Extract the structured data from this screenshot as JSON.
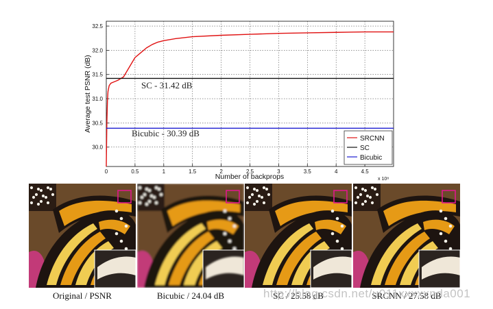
{
  "chart_data": {
    "type": "line",
    "ylabel": "Average test PSNR (dB)",
    "xlabel": "Number of backprops",
    "x_multiplier_label": "x 10⁸",
    "xlim": [
      0,
      5
    ],
    "ylim": [
      29.6,
      32.6
    ],
    "x_ticks": [
      0,
      0.5,
      1,
      1.5,
      2,
      2.5,
      3,
      3.5,
      4,
      4.5
    ],
    "x_tick_labels": [
      "0",
      "0.5",
      "1",
      "1.5",
      "2",
      "2.5",
      "3",
      "3.5",
      "4",
      "4.5"
    ],
    "y_ticks": [
      30.0,
      30.5,
      31.0,
      31.5,
      32.0,
      32.5
    ],
    "y_tick_labels": [
      "30.0",
      "30.5",
      "31.0",
      "31.5",
      "32.0",
      "32.5"
    ],
    "grid": true,
    "legend_position": "bottom-right",
    "series": [
      {
        "name": "SRCNN",
        "color": "#e01010",
        "x": [
          0,
          0.01,
          0.02,
          0.03,
          0.05,
          0.08,
          0.12,
          0.2,
          0.3,
          0.4,
          0.5,
          0.6,
          0.7,
          0.8,
          0.9,
          1.0,
          1.2,
          1.5,
          2.0,
          2.5,
          3.0,
          3.5,
          4.0,
          4.5,
          5.0
        ],
        "y": [
          29.6,
          30.5,
          30.95,
          31.15,
          31.27,
          31.32,
          31.34,
          31.38,
          31.45,
          31.65,
          31.85,
          31.95,
          32.05,
          32.12,
          32.17,
          32.2,
          32.24,
          32.28,
          32.31,
          32.33,
          32.35,
          32.36,
          32.37,
          32.38,
          32.38
        ]
      },
      {
        "name": "SC",
        "color": "#111111",
        "x": [
          0,
          5
        ],
        "y": [
          31.42,
          31.42
        ]
      },
      {
        "name": "Bicubic",
        "color": "#1a1ad0",
        "x": [
          0,
          5
        ],
        "y": [
          30.39,
          30.39
        ]
      }
    ],
    "annotations": [
      {
        "text": "SC - 31.42 dB"
      },
      {
        "text": "Bicubic - 30.39 dB"
      }
    ]
  },
  "images": [
    {
      "caption": "Original / PSNR",
      "variant": "sharp"
    },
    {
      "caption": "Bicubic / 24.04 dB",
      "variant": "blur"
    },
    {
      "caption": "SC / 25.58 dB",
      "variant": "sharp"
    },
    {
      "caption": "SRCNN / 27.58 dB",
      "variant": "sharp"
    }
  ],
  "watermark": "http://blog.csdn.net/u011xxxxxnda001",
  "colors": {
    "highlight_box": "#e0188c",
    "wing_orange": "#e69a16",
    "wing_yellow": "#f0cc52",
    "vein_black": "#1d1410",
    "flower_pink": "#c23a78",
    "background_brown": "#6a4a2a"
  }
}
